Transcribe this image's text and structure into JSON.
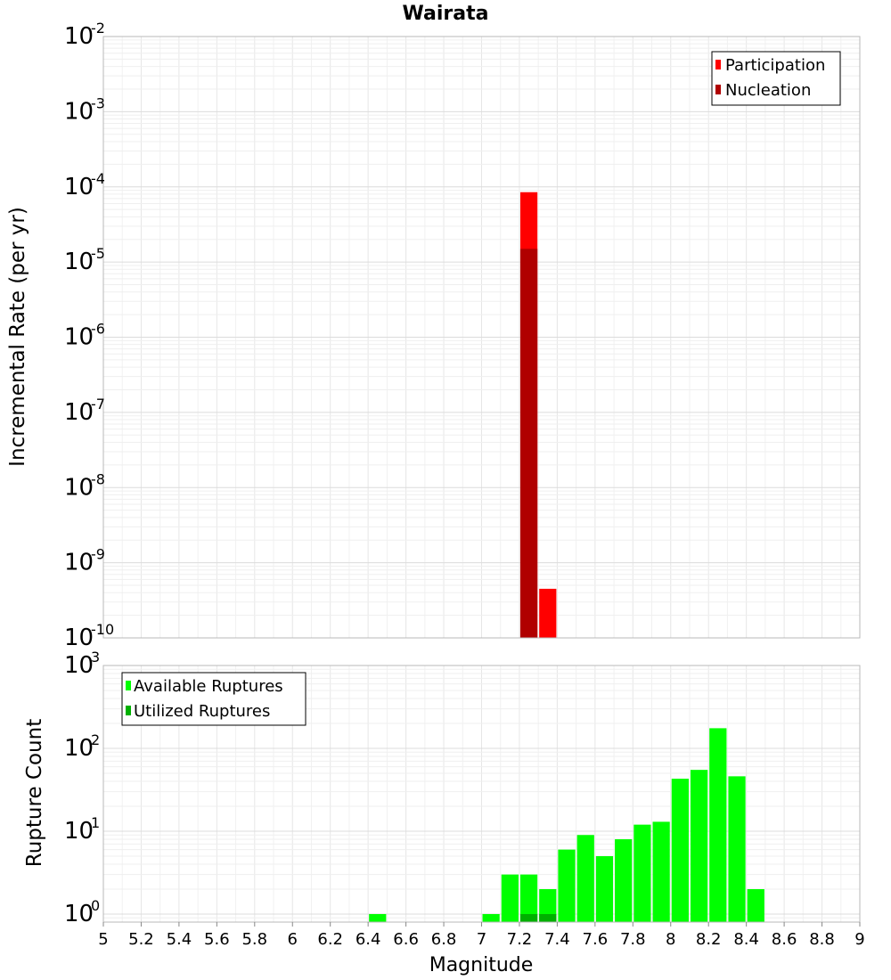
{
  "chart_data": [
    {
      "type": "bar",
      "title": "Wairata",
      "ylabel": "Incremental Rate (per yr)",
      "xlabel": "",
      "xlim": [
        5,
        9
      ],
      "ylim": [
        1e-10,
        0.01
      ],
      "y_scale": "log",
      "y_ticks": [
        {
          "base": "10",
          "exp": "-2"
        },
        {
          "base": "10",
          "exp": "-3"
        },
        {
          "base": "10",
          "exp": "-4"
        },
        {
          "base": "10",
          "exp": "-5"
        },
        {
          "base": "10",
          "exp": "-6"
        },
        {
          "base": "10",
          "exp": "-7"
        },
        {
          "base": "10",
          "exp": "-8"
        },
        {
          "base": "10",
          "exp": "-9"
        },
        {
          "base": "10",
          "exp": "-10"
        }
      ],
      "grid": true,
      "legend_position": "top-right",
      "bin_width": 0.1,
      "series": [
        {
          "name": "Participation",
          "color": "#ff0000",
          "x": [
            7.25,
            7.35
          ],
          "values": [
            8.5e-05,
            4.5e-10
          ]
        },
        {
          "name": "Nucleation",
          "color": "#b00000",
          "x": [
            7.25
          ],
          "values": [
            1.5e-05
          ]
        }
      ]
    },
    {
      "type": "bar",
      "title": "",
      "ylabel": "Rupture Count",
      "xlabel": "Magnitude",
      "xlim": [
        5,
        9
      ],
      "ylim": [
        0.8,
        1000
      ],
      "y_scale": "log",
      "y_ticks": [
        {
          "base": "10",
          "exp": "3"
        },
        {
          "base": "10",
          "exp": "2"
        },
        {
          "base": "10",
          "exp": "1"
        },
        {
          "base": "10",
          "exp": "0"
        }
      ],
      "x_tick_labels": [
        "5",
        "5.2",
        "5.4",
        "5.6",
        "5.8",
        "6",
        "6.2",
        "6.4",
        "6.6",
        "6.8",
        "7",
        "7.2",
        "7.4",
        "7.6",
        "7.8",
        "8",
        "8.2",
        "8.4",
        "8.6",
        "8.8",
        "9"
      ],
      "grid": true,
      "legend_position": "top-left",
      "bin_width": 0.1,
      "series": [
        {
          "name": "Available Ruptures",
          "color": "#00ff00",
          "x": [
            6.45,
            7.05,
            7.15,
            7.25,
            7.35,
            7.45,
            7.55,
            7.65,
            7.75,
            7.85,
            7.95,
            8.05,
            8.15,
            8.25,
            8.35,
            8.45
          ],
          "values": [
            1,
            1,
            3,
            3,
            2,
            6,
            9,
            5,
            8,
            12,
            13,
            43,
            55,
            175,
            46,
            2
          ]
        },
        {
          "name": "Utilized Ruptures",
          "color": "#00b000",
          "x": [
            7.25,
            7.35
          ],
          "values": [
            1,
            1
          ]
        }
      ]
    }
  ]
}
